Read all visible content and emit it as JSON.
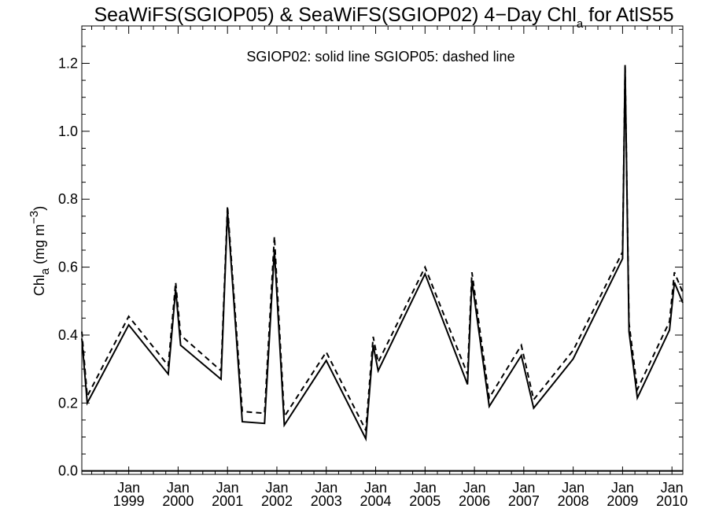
{
  "chart_data": {
    "type": "line",
    "title_main": "SeaWiFS(SGIOP05) & SeaWiFS(SGIOP02) 4−Day Chl",
    "title_sub": "a",
    "title_tail": " for AtlS55",
    "ylabel_main": "Chl",
    "ylabel_sub": "a",
    "ylabel_unit": " (mg m",
    "ylabel_exp": "−3",
    "ylabel_close": ")",
    "xlabel": "",
    "annotation": "SGIOP02: solid line   SGIOP05: dashed line",
    "xlim": [
      1998.05,
      2010.22
    ],
    "ylim": [
      -0.01,
      1.31
    ],
    "grid": false,
    "y_ticks": [
      "0.0",
      "0.2",
      "0.4",
      "0.6",
      "0.8",
      "1.0",
      "1.2"
    ],
    "x_ticks": [
      {
        "month": "Jan",
        "year": "1999"
      },
      {
        "month": "Jan",
        "year": "2000"
      },
      {
        "month": "Jan",
        "year": "2001"
      },
      {
        "month": "Jan",
        "year": "2002"
      },
      {
        "month": "Jan",
        "year": "2003"
      },
      {
        "month": "Jan",
        "year": "2004"
      },
      {
        "month": "Jan",
        "year": "2005"
      },
      {
        "month": "Jan",
        "year": "2006"
      },
      {
        "month": "Jan",
        "year": "2007"
      },
      {
        "month": "Jan",
        "year": "2008"
      },
      {
        "month": "Jan",
        "year": "2009"
      },
      {
        "month": "Jan",
        "year": "2010"
      }
    ],
    "series": [
      {
        "name": "SGIOP02",
        "style": "solid",
        "color": "#000000",
        "points": [
          [
            1998.05,
            0.39
          ],
          [
            1998.16,
            0.2
          ],
          [
            1999.0,
            0.43
          ],
          [
            1999.8,
            0.285
          ],
          [
            1999.95,
            0.535
          ],
          [
            2000.05,
            0.37
          ],
          [
            2000.87,
            0.27
          ],
          [
            2001.0,
            0.765
          ],
          [
            2001.3,
            0.145
          ],
          [
            2001.75,
            0.14
          ],
          [
            2001.95,
            0.65
          ],
          [
            2002.15,
            0.135
          ],
          [
            2003.0,
            0.325
          ],
          [
            2003.8,
            0.095
          ],
          [
            2003.95,
            0.37
          ],
          [
            2004.05,
            0.295
          ],
          [
            2005.0,
            0.58
          ],
          [
            2005.86,
            0.255
          ],
          [
            2005.95,
            0.56
          ],
          [
            2006.3,
            0.19
          ],
          [
            2006.95,
            0.34
          ],
          [
            2007.2,
            0.185
          ],
          [
            2008.0,
            0.33
          ],
          [
            2009.0,
            0.625
          ],
          [
            2009.05,
            1.195
          ],
          [
            2009.13,
            0.41
          ],
          [
            2009.3,
            0.215
          ],
          [
            2009.95,
            0.415
          ],
          [
            2010.05,
            0.555
          ],
          [
            2010.22,
            0.495
          ]
        ]
      },
      {
        "name": "SGIOP05",
        "style": "dashed",
        "color": "#000000",
        "points": [
          [
            1998.05,
            0.41
          ],
          [
            1998.16,
            0.22
          ],
          [
            1999.0,
            0.455
          ],
          [
            1999.8,
            0.31
          ],
          [
            1999.95,
            0.555
          ],
          [
            2000.05,
            0.4
          ],
          [
            2000.87,
            0.295
          ],
          [
            2001.0,
            0.78
          ],
          [
            2001.3,
            0.175
          ],
          [
            2001.75,
            0.17
          ],
          [
            2001.95,
            0.69
          ],
          [
            2002.15,
            0.16
          ],
          [
            2003.0,
            0.35
          ],
          [
            2003.8,
            0.12
          ],
          [
            2003.95,
            0.395
          ],
          [
            2004.05,
            0.32
          ],
          [
            2005.0,
            0.6
          ],
          [
            2005.86,
            0.285
          ],
          [
            2005.95,
            0.585
          ],
          [
            2006.3,
            0.215
          ],
          [
            2006.95,
            0.37
          ],
          [
            2007.2,
            0.21
          ],
          [
            2008.0,
            0.355
          ],
          [
            2009.0,
            0.645
          ],
          [
            2009.05,
            1.19
          ],
          [
            2009.13,
            0.435
          ],
          [
            2009.3,
            0.24
          ],
          [
            2009.95,
            0.44
          ],
          [
            2010.05,
            0.585
          ],
          [
            2010.22,
            0.525
          ]
        ]
      }
    ]
  }
}
